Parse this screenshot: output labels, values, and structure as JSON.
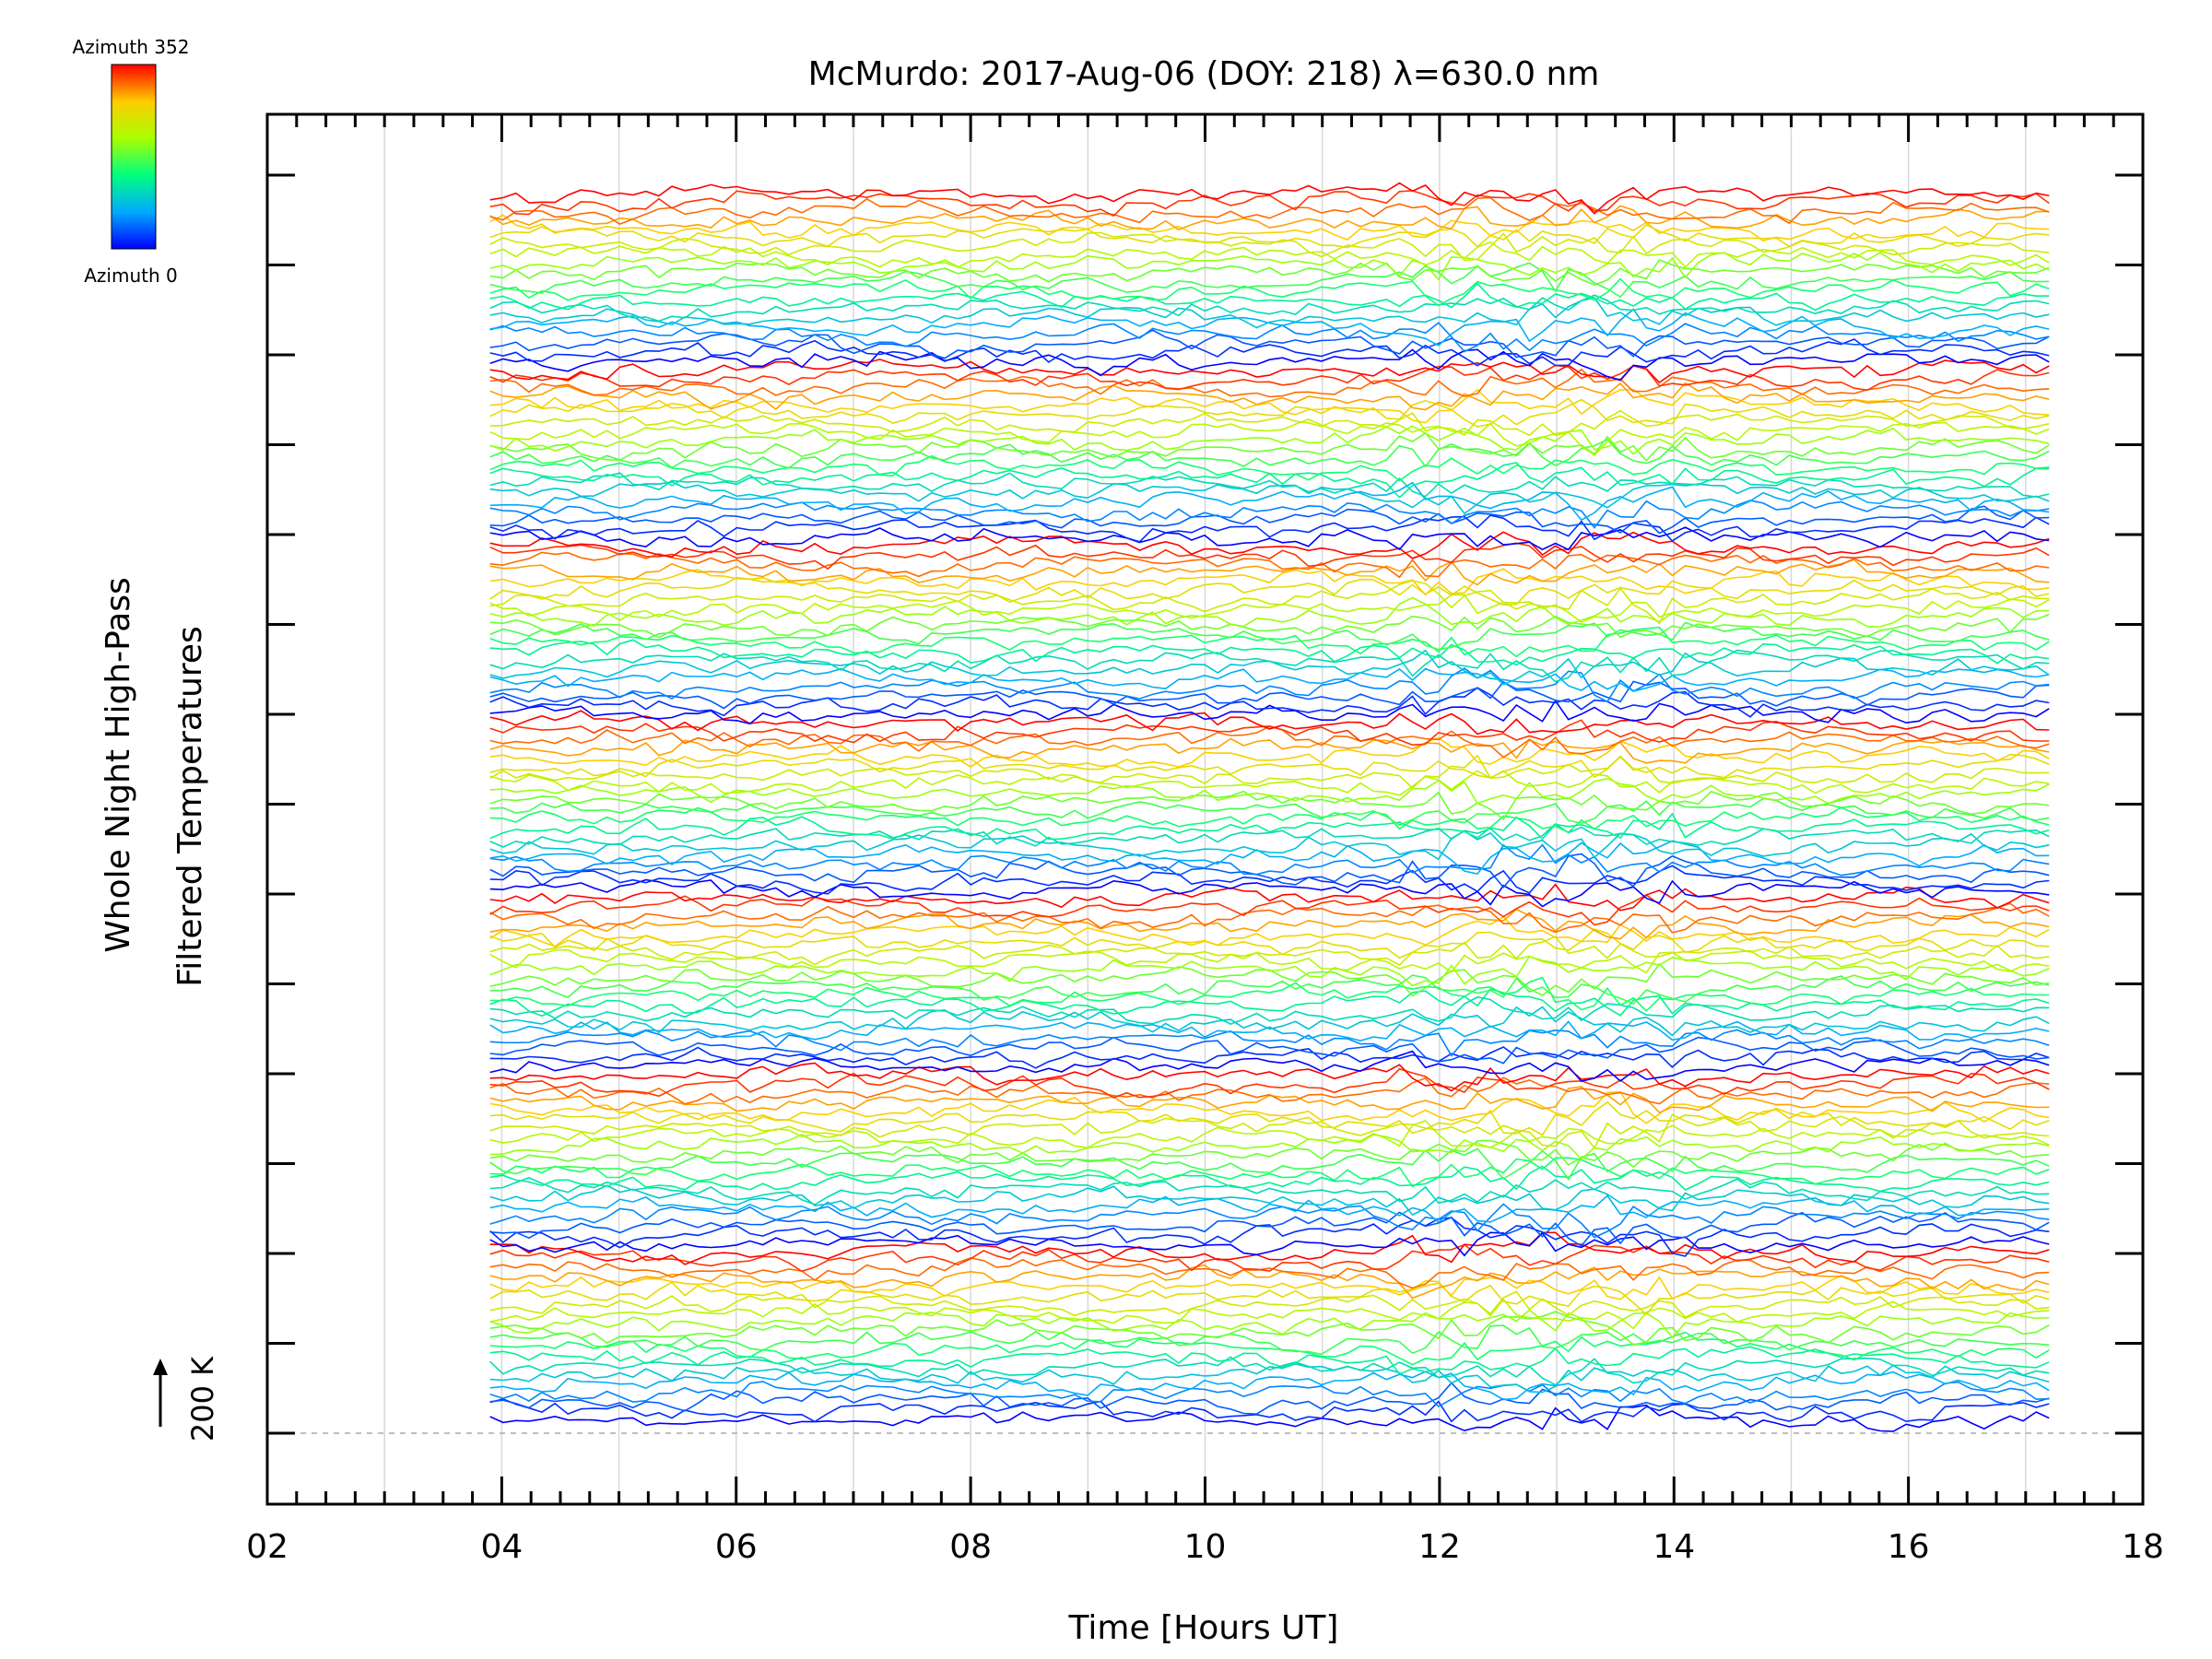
{
  "chart_data": {
    "type": "line",
    "title": "McMurdo: 2017-Aug-06 (DOY: 218) λ=630.0 nm",
    "xlabel": "Time [Hours UT]",
    "ylabel_line1": "Whole Night High-Pass",
    "ylabel_line2": "Filtered Temperatures",
    "xlim": [
      2,
      18
    ],
    "x_ticks": [
      "02",
      "04",
      "06",
      "08",
      "10",
      "12",
      "14",
      "16",
      "18"
    ],
    "x_tick_values": [
      2,
      4,
      6,
      8,
      10,
      12,
      14,
      16,
      18
    ],
    "grid": "vertical every 1 hour",
    "data_start_hour": 3.9,
    "data_end_hour": 17.2,
    "scale_marker": "200 K",
    "trace_count": 140,
    "trace_offset_K": 7,
    "colorbar": {
      "top_label": "Azimuth 352",
      "bottom_label": "Azimuth 0",
      "colors": [
        "#0000ff",
        "#00aaff",
        "#00ff80",
        "#aaff00",
        "#ffcc00",
        "#ff0000"
      ]
    }
  }
}
